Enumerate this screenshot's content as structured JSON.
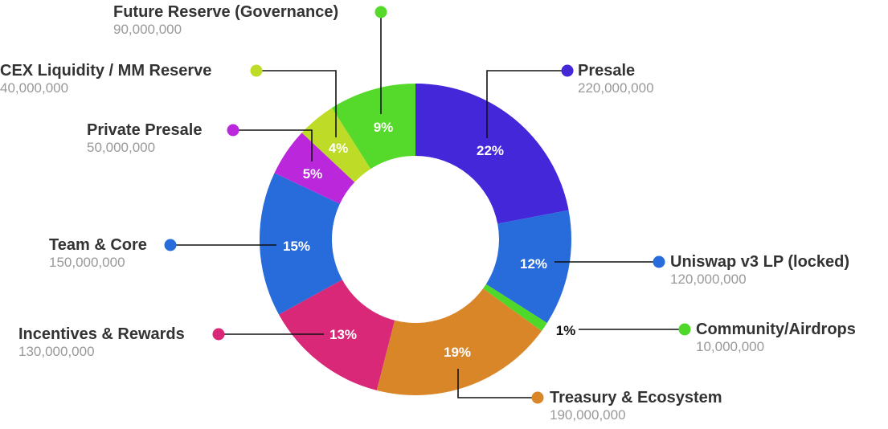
{
  "chart_data": {
    "type": "pie",
    "variant": "donut",
    "legend_placement": "callouts",
    "slices": [
      {
        "name": "Presale",
        "value": 220000000,
        "value_label": "220,000,000",
        "percent": 22,
        "percent_label": "22%",
        "color": "#4327D9"
      },
      {
        "name": "Uniswap v3 LP (locked)",
        "value": 120000000,
        "value_label": "120,000,000",
        "percent": 12,
        "percent_label": "12%",
        "color": "#286BDB"
      },
      {
        "name": "Community/Airdrops",
        "value": 10000000,
        "value_label": "10,000,000",
        "percent": 1,
        "percent_label": "1%",
        "color": "#4ED82A"
      },
      {
        "name": "Treasury & Ecosystem",
        "value": 190000000,
        "value_label": "190,000,000",
        "percent": 19,
        "percent_label": "19%",
        "color": "#D98628"
      },
      {
        "name": "Incentives & Rewards",
        "value": 130000000,
        "value_label": "130,000,000",
        "percent": 13,
        "percent_label": "13%",
        "color": "#D92878"
      },
      {
        "name": "Team & Core",
        "value": 150000000,
        "value_label": "150,000,000",
        "percent": 15,
        "percent_label": "15%",
        "color": "#286BDB"
      },
      {
        "name": "Private Presale",
        "value": 50000000,
        "value_label": "50,000,000",
        "percent": 5,
        "percent_label": "5%",
        "color": "#BB28DB"
      },
      {
        "name": "CEX Liquidity / MM Reserve",
        "value": 40000000,
        "value_label": "40,000,000",
        "percent": 4,
        "percent_label": "4%",
        "color": "#BEDB28"
      },
      {
        "name": "Future Reserve (Governance)",
        "value": 90000000,
        "value_label": "90,000,000",
        "percent": 9,
        "percent_label": "9%",
        "color": "#55D92A"
      }
    ]
  }
}
